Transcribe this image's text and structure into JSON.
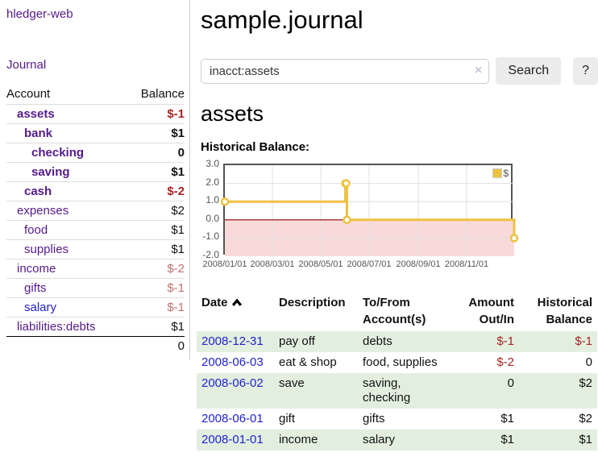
{
  "app": {
    "brand": "hledger-web",
    "nav_journal": "Journal"
  },
  "sidebar": {
    "headers": {
      "account": "Account",
      "balance": "Balance"
    },
    "accounts": [
      {
        "name": "assets",
        "depth": 1,
        "balance": "$-1",
        "bold": true,
        "balance_style": "negative"
      },
      {
        "name": "bank",
        "depth": 2,
        "balance": "$1",
        "bold": true,
        "balance_style": "normal"
      },
      {
        "name": "checking",
        "depth": 3,
        "balance": "0",
        "bold": true,
        "balance_style": "normal"
      },
      {
        "name": "saving",
        "depth": 3,
        "balance": "$1",
        "bold": true,
        "balance_style": "normal"
      },
      {
        "name": "cash",
        "depth": 2,
        "balance": "$-2",
        "bold": true,
        "balance_style": "negative"
      },
      {
        "name": "expenses",
        "depth": 1,
        "balance": "$2",
        "bold": false,
        "balance_style": "normal"
      },
      {
        "name": "food",
        "depth": 2,
        "balance": "$1",
        "bold": false,
        "balance_style": "normal"
      },
      {
        "name": "supplies",
        "depth": 2,
        "balance": "$1",
        "bold": false,
        "balance_style": "normal"
      },
      {
        "name": "income",
        "depth": 1,
        "balance": "$-2",
        "bold": false,
        "balance_style": "negative_muted"
      },
      {
        "name": "gifts",
        "depth": 2,
        "balance": "$-1",
        "bold": false,
        "balance_style": "negative_muted"
      },
      {
        "name": "salary",
        "depth": 2,
        "balance": "$-1",
        "bold": false,
        "balance_style": "negative_muted",
        "link_color": "blue"
      },
      {
        "name": "liabilities:debts",
        "depth": 1,
        "balance": "$1",
        "bold": false,
        "balance_style": "normal"
      }
    ],
    "total": "0"
  },
  "header": {
    "title": "sample.journal"
  },
  "search": {
    "value": "inacct:assets",
    "clear_icon": "×",
    "button": "Search",
    "help_button": "?"
  },
  "account_page": {
    "heading": "assets",
    "chart_label": "Historical Balance:"
  },
  "chart_data": {
    "type": "line",
    "step": true,
    "title": "Historical Balance",
    "series": [
      {
        "name": "$",
        "color": "#edc240",
        "points": [
          {
            "date": "2008-01-01",
            "value": 1
          },
          {
            "date": "2008-06-01",
            "value": 2
          },
          {
            "date": "2008-06-02",
            "value": 2
          },
          {
            "date": "2008-06-03",
            "value": 0
          },
          {
            "date": "2008-12-31",
            "value": -1
          }
        ]
      }
    ],
    "xrange": [
      "2008-01-01",
      "2008-12-31"
    ],
    "xticks": [
      {
        "date": "2008-01-01",
        "label": "2008/01/01"
      },
      {
        "date": "2008-03-01",
        "label": "2008/03/01"
      },
      {
        "date": "2008-05-01",
        "label": "2008/05/01"
      },
      {
        "date": "2008-07-01",
        "label": "2008/07/01"
      },
      {
        "date": "2008-09-01",
        "label": "2008/09/01"
      },
      {
        "date": "2008-11-01",
        "label": "2008/11/01"
      }
    ],
    "ylim": [
      -2,
      3
    ],
    "yticks": [
      -2,
      -1,
      0,
      1,
      2,
      3
    ],
    "ytick_labels": [
      "-2.0",
      "-1.0",
      "0.0",
      "1.0",
      "2.0",
      "3.0"
    ],
    "grid": true,
    "legend_position": "top-right",
    "colors": {
      "line": "#edc240",
      "marker_fill": "#ffffff",
      "gridline": "#e0e0e0",
      "border": "#545454",
      "negative_region_fill": "#f9dada",
      "zero_line": "#8b0000"
    }
  },
  "register": {
    "sort": {
      "column": "Date",
      "direction": "ascending"
    },
    "headers": [
      {
        "line1": "Date",
        "line2": ""
      },
      {
        "line1": "Description",
        "line2": ""
      },
      {
        "line1": "To/From",
        "line2": "Account(s)"
      },
      {
        "line1": "Amount",
        "line2": "Out/In"
      },
      {
        "line1": "Historical",
        "line2": "Balance"
      }
    ],
    "rows": [
      {
        "date": "2008-12-31",
        "description": "pay off",
        "accounts": "debts",
        "amount": "$-1",
        "amount_style": "negative",
        "balance": "$-1",
        "balance_style": "negative"
      },
      {
        "date": "2008-06-03",
        "description": "eat & shop",
        "accounts": "food, supplies",
        "amount": "$-2",
        "amount_style": "negative",
        "balance": "0",
        "balance_style": "normal"
      },
      {
        "date": "2008-06-02",
        "description": "save",
        "accounts": "saving, checking",
        "amount": "0",
        "amount_style": "normal",
        "balance": "$2",
        "balance_style": "normal"
      },
      {
        "date": "2008-06-01",
        "description": "gift",
        "accounts": "gifts",
        "amount": "$1",
        "amount_style": "normal",
        "balance": "$2",
        "balance_style": "normal"
      },
      {
        "date": "2008-01-01",
        "description": "income",
        "accounts": "salary",
        "amount": "$1",
        "amount_style": "normal",
        "balance": "$1",
        "balance_style": "normal"
      }
    ]
  },
  "colors": {
    "accent_purple": "#551a8b",
    "link_blue": "#2222cc",
    "negative": "#a82424",
    "negative_muted": "#c17070",
    "stripe_green": "#e2efdf"
  }
}
